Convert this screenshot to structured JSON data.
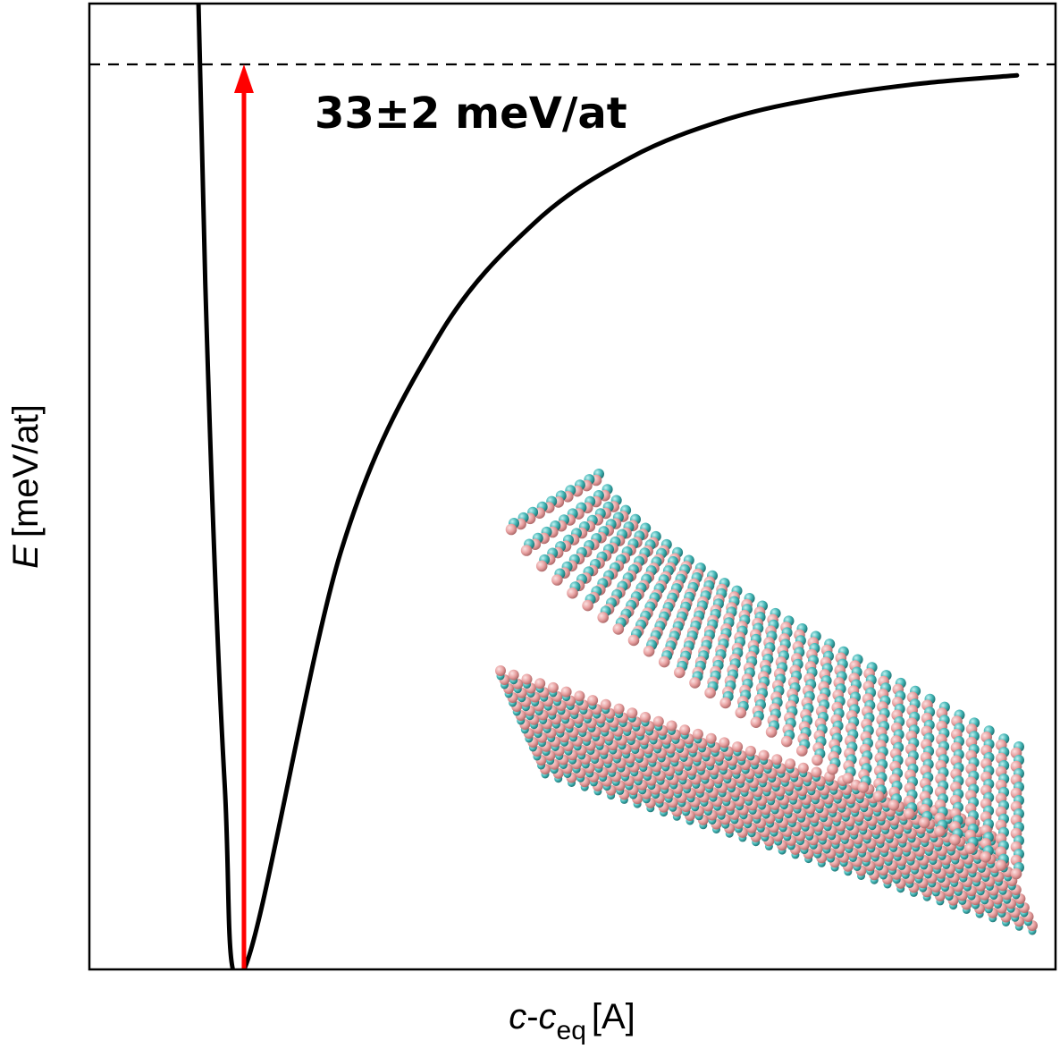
{
  "chart_data": {
    "type": "line",
    "title": "",
    "xlabel": {
      "var": "c",
      "dash": "-",
      "var2": "c",
      "sub": "eq",
      "unit": "[A]"
    },
    "ylabel": {
      "var": "E",
      "unit": "[meV/at]"
    },
    "x_ticks_shown": false,
    "y_ticks_shown": false,
    "grid": false,
    "legend": "none",
    "curve": {
      "name": "",
      "color": "#000000",
      "form": "binding-energy curve, minimum at x = 0, approaching 33 at large separation",
      "x": [
        -0.4,
        -0.3,
        -0.2,
        -0.1,
        0.0,
        0.5,
        1.0,
        1.5,
        2.0,
        2.5,
        3.0,
        3.5,
        4.0
      ],
      "y": [
        90,
        54,
        25,
        6.8,
        0.0,
        15.2,
        23.0,
        27.2,
        29.6,
        31.0,
        31.8,
        32.3,
        32.6
      ]
    },
    "reference_line": {
      "style": "dashed",
      "color": "#000000",
      "y": 33
    },
    "arrow": {
      "color": "#ff0000",
      "x": 0.0,
      "y_from": 0.0,
      "y_to": 33
    },
    "annotation": {
      "text": "33±2 meV/at"
    },
    "inset": {
      "kind": "atomic structure rendering of bilayer sheets",
      "colors": {
        "pink": "#e8a0a0",
        "cyan": "#40b4b4"
      }
    }
  }
}
